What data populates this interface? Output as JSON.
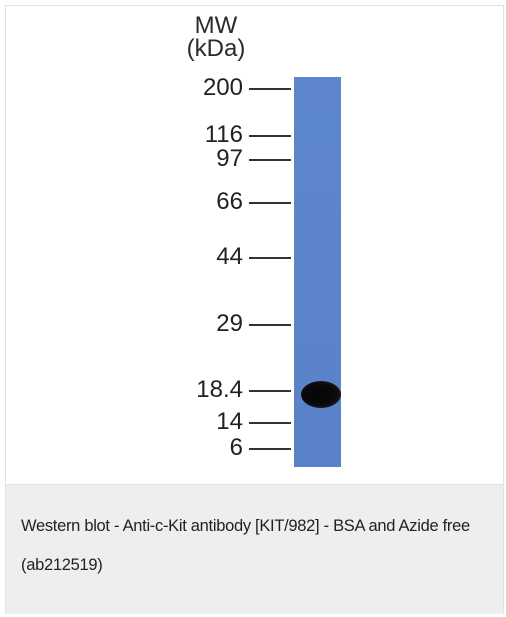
{
  "figure": {
    "axis_title_line1": "MW",
    "axis_title_line2": "(kDa)",
    "markers": [
      "200",
      "116",
      "97",
      "66",
      "44",
      "29",
      "18.4",
      "14",
      "6"
    ],
    "lane_color": "#5b84ca",
    "band_color": "#0a0a0a"
  },
  "caption": {
    "text": "Western blot - Anti-c-Kit antibody [KIT/982] - BSA and Azide free (ab212519)"
  }
}
